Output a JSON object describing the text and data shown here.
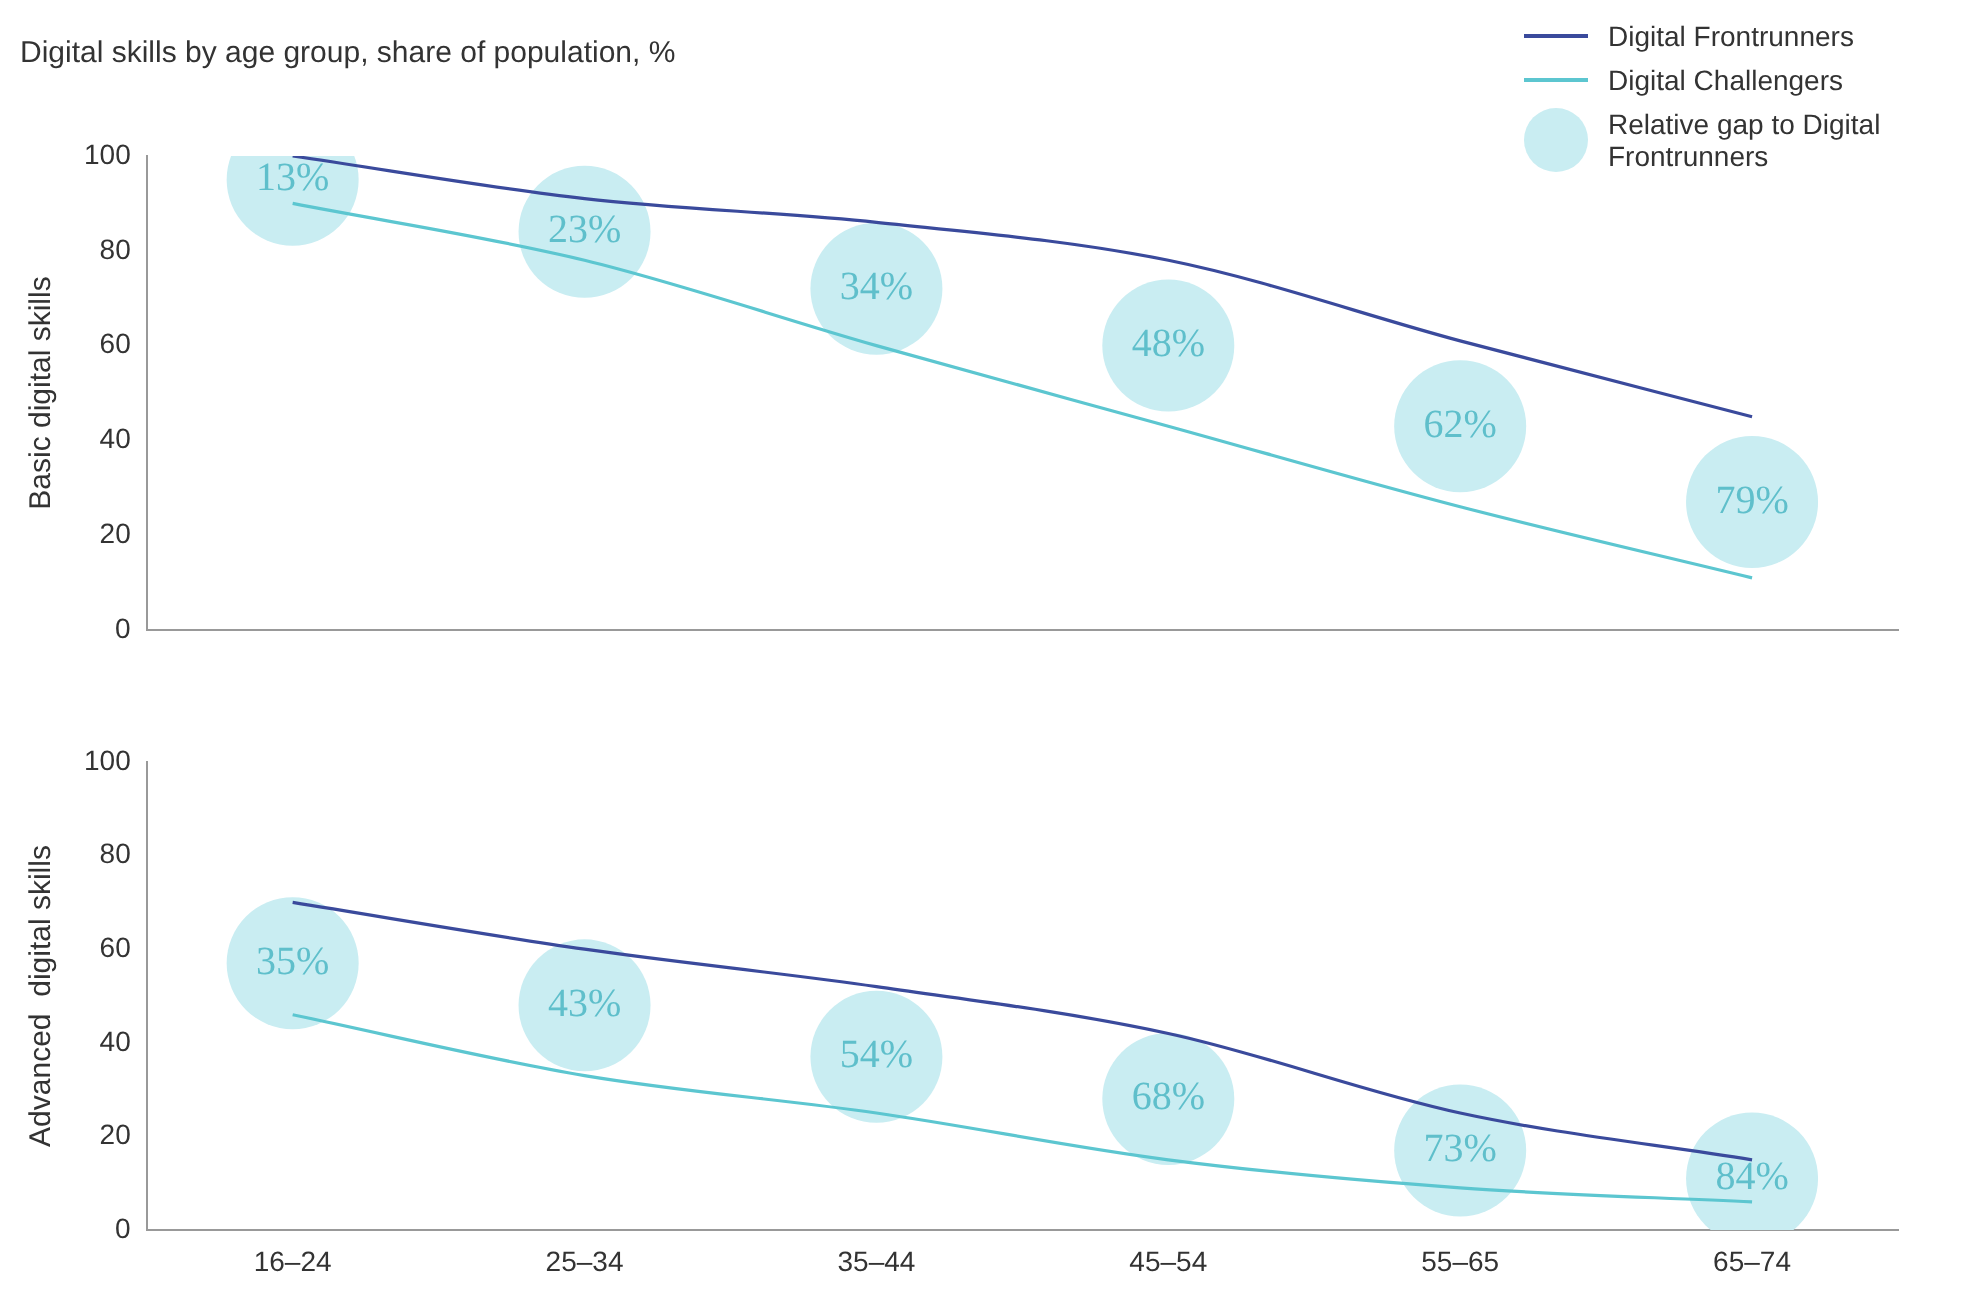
{
  "chart_data": [
    {
      "type": "line",
      "title": "Digital skills by age group, share of population, %",
      "ylabel": "Basic digital skills",
      "categories": [
        null,
        null,
        null,
        null,
        null,
        null
      ],
      "tick_labels": "y",
      "ylim": [
        0,
        100
      ],
      "yticks": [
        0,
        20,
        40,
        60,
        80,
        100
      ],
      "grid": false,
      "legend": "top right",
      "marker": "none",
      "series": [
        {
          "name": "Digital Frontrunners",
          "color": "#3a4a9c",
          "values": [
            100,
            91,
            86,
            78,
            61,
            45
          ]
        },
        {
          "name": "Digital Challengers",
          "color": "#5cc6d0",
          "values": [
            90,
            78,
            60,
            43,
            26,
            11
          ]
        },
        {
          "type": "scatter",
          "marker": "circle",
          "name": "Relative gap to Digital Frontrunners",
          "color": "#c9edf2",
          "values": [
            95,
            84,
            72,
            60,
            43,
            27
          ]
        }
      ],
      "annotations": [
        {
          "text": "13%",
          "y": 95
        },
        {
          "text": "23%",
          "y": 84
        },
        {
          "text": "34%",
          "y": 72
        },
        {
          "text": "48%",
          "y": 60
        },
        {
          "text": "62%",
          "y": 43
        },
        {
          "text": "79%",
          "y": 27
        }
      ]
    },
    {
      "type": "line",
      "ylabel": "Advanced  digital skills",
      "categories": [
        "16–24",
        "25–34",
        "35–44",
        "45–54",
        "55–65",
        "65–74"
      ],
      "ylim": [
        0,
        100
      ],
      "yticks": [
        0,
        20,
        40,
        60,
        80,
        100
      ],
      "grid": false,
      "marker": "none",
      "series": [
        {
          "color": "#3a4a9c",
          "values": [
            70,
            60,
            52,
            42,
            25,
            15
          ]
        },
        {
          "color": "#5cc6d0",
          "values": [
            46,
            33,
            25,
            15,
            9,
            6
          ]
        },
        {
          "type": "scatter",
          "marker": "circle",
          "color": "#c9edf2",
          "values": [
            57,
            48,
            37,
            28,
            17,
            11
          ]
        }
      ],
      "annotations": [
        {
          "text": "35%",
          "x": "16–24",
          "y": 57
        },
        {
          "text": "43%",
          "x": "25–34",
          "y": 48
        },
        {
          "text": "54%",
          "x": "35–44",
          "y": 37
        },
        {
          "text": "68%",
          "x": "45–54",
          "y": 28
        },
        {
          "text": "73%",
          "x": "55–65",
          "y": 17
        },
        {
          "text": "84%",
          "x": "65–74",
          "y": 11
        }
      ]
    }
  ]
}
